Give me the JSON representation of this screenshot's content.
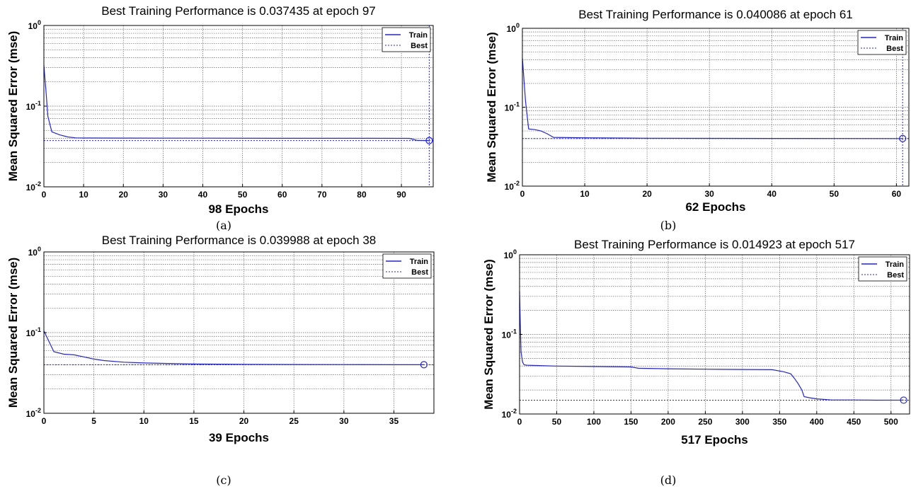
{
  "colors": {
    "train": "#2222ee",
    "best": "#2222ee",
    "grid": "#666666",
    "axis": "#000000"
  },
  "chart_data": [
    {
      "type": "line",
      "title": "Best Training Performance is 0.037435 at epoch 97",
      "xlabel": "98 Epochs",
      "ylabel": "Mean Squared Error  (mse)",
      "caption": "(a)",
      "yscale": "log",
      "xlim": [
        0,
        98
      ],
      "ylim": [
        0.01,
        1
      ],
      "xticks": [
        0,
        10,
        20,
        30,
        40,
        50,
        60,
        70,
        80,
        90
      ],
      "xtick_labels": [
        "0",
        "10",
        "20",
        "30",
        "40",
        "50",
        "60",
        "70",
        "80",
        "90"
      ],
      "yticks": [
        {
          "base": "10",
          "exp": "-2",
          "value": 0.01
        },
        {
          "base": "10",
          "exp": "-1",
          "value": 0.1
        },
        {
          "base": "10",
          "exp": "0",
          "value": 1
        }
      ],
      "grid": true,
      "legend": {
        "position": "top-right",
        "entries": [
          "Train",
          "Best"
        ]
      },
      "series": [
        {
          "name": "Train",
          "x": [
            0,
            0.5,
            1,
            2,
            4,
            6,
            8,
            10,
            20,
            40,
            60,
            80,
            92,
            94,
            97
          ],
          "y": [
            0.32,
            0.16,
            0.075,
            0.048,
            0.044,
            0.0415,
            0.0405,
            0.0403,
            0.0402,
            0.0401,
            0.04,
            0.04,
            0.0399,
            0.0376,
            0.037435
          ]
        }
      ],
      "best": {
        "epoch": 97,
        "value": 0.037435,
        "vline": true
      }
    },
    {
      "type": "line",
      "title": "Best Training Performance is 0.040086 at epoch 61",
      "xlabel": "62 Epochs",
      "ylabel": "Mean Squared Error  (mse)",
      "caption": "(b)",
      "yscale": "log",
      "xlim": [
        0,
        62
      ],
      "ylim": [
        0.01,
        1
      ],
      "xticks": [
        0,
        10,
        20,
        30,
        40,
        50,
        60
      ],
      "xtick_labels": [
        "0",
        "10",
        "20",
        "30",
        "40",
        "50",
        "60"
      ],
      "yticks": [
        {
          "base": "10",
          "exp": "-2",
          "value": 0.01
        },
        {
          "base": "10",
          "exp": "-1",
          "value": 0.1
        },
        {
          "base": "10",
          "exp": "0",
          "value": 1
        }
      ],
      "grid": true,
      "legend": {
        "position": "top-right",
        "entries": [
          "Train",
          "Best"
        ]
      },
      "series": [
        {
          "name": "Train",
          "x": [
            0,
            0.5,
            1,
            2,
            3,
            4,
            5,
            10,
            20,
            30,
            40,
            50,
            61
          ],
          "y": [
            0.42,
            0.12,
            0.053,
            0.052,
            0.05,
            0.046,
            0.0415,
            0.041,
            0.0405,
            0.0403,
            0.0402,
            0.0401,
            0.040086
          ]
        }
      ],
      "best": {
        "epoch": 61,
        "value": 0.040086,
        "vline": true
      }
    },
    {
      "type": "line",
      "title": "Best Training Performance is 0.039988 at epoch 38",
      "xlabel": "39 Epochs",
      "ylabel": "Mean Squared Error  (mse)",
      "caption": "(c)",
      "yscale": "log",
      "xlim": [
        0,
        39
      ],
      "ylim": [
        0.01,
        1
      ],
      "xticks": [
        0,
        5,
        10,
        15,
        20,
        25,
        30,
        35
      ],
      "xtick_labels": [
        "0",
        "5",
        "10",
        "15",
        "20",
        "25",
        "30",
        "35"
      ],
      "yticks": [
        {
          "base": "10",
          "exp": "-2",
          "value": 0.01
        },
        {
          "base": "10",
          "exp": "-1",
          "value": 0.1
        },
        {
          "base": "10",
          "exp": "0",
          "value": 1
        }
      ],
      "grid": true,
      "legend": {
        "position": "top-right",
        "entries": [
          "Train",
          "Best"
        ]
      },
      "series": [
        {
          "name": "Train",
          "x": [
            0,
            1,
            2,
            3,
            4,
            5,
            6,
            8,
            10,
            15,
            20,
            25,
            30,
            35,
            38
          ],
          "y": [
            0.105,
            0.058,
            0.054,
            0.053,
            0.05,
            0.047,
            0.045,
            0.043,
            0.042,
            0.0408,
            0.0404,
            0.0402,
            0.0401,
            0.04,
            0.039988
          ]
        }
      ],
      "best": {
        "epoch": 38,
        "value": 0.039988,
        "vline": false
      }
    },
    {
      "type": "line",
      "title": "Best Training Performance is 0.014923 at epoch 517",
      "xlabel": "517 Epochs",
      "ylabel": "Mean Squared Error  (mse)",
      "caption": "(d)",
      "yscale": "log",
      "xlim": [
        0,
        525
      ],
      "ylim": [
        0.01,
        1
      ],
      "xticks": [
        0,
        50,
        100,
        150,
        200,
        250,
        300,
        350,
        400,
        450,
        500
      ],
      "xtick_labels": [
        "0",
        "50",
        "100",
        "150",
        "200",
        "250",
        "300",
        "350",
        "400",
        "450",
        "500"
      ],
      "yticks": [
        {
          "base": "10",
          "exp": "-2",
          "value": 0.01
        },
        {
          "base": "10",
          "exp": "-1",
          "value": 0.1
        },
        {
          "base": "10",
          "exp": "0",
          "value": 1
        }
      ],
      "grid": true,
      "legend": {
        "position": "top-right",
        "entries": [
          "Train",
          "Best"
        ]
      },
      "series": [
        {
          "name": "Train",
          "x": [
            0,
            1,
            2,
            4,
            6,
            10,
            50,
            100,
            150,
            160,
            200,
            250,
            300,
            340,
            355,
            365,
            370,
            375,
            380,
            383,
            390,
            400,
            420,
            450,
            480,
            517
          ],
          "y": [
            0.35,
            0.14,
            0.06,
            0.045,
            0.0415,
            0.041,
            0.04,
            0.0395,
            0.039,
            0.0375,
            0.037,
            0.0365,
            0.0362,
            0.036,
            0.034,
            0.032,
            0.028,
            0.024,
            0.02,
            0.0165,
            0.016,
            0.0155,
            0.015,
            0.015,
            0.0149,
            0.014923
          ]
        }
      ],
      "best": {
        "epoch": 517,
        "value": 0.014923,
        "vline": false
      }
    }
  ]
}
